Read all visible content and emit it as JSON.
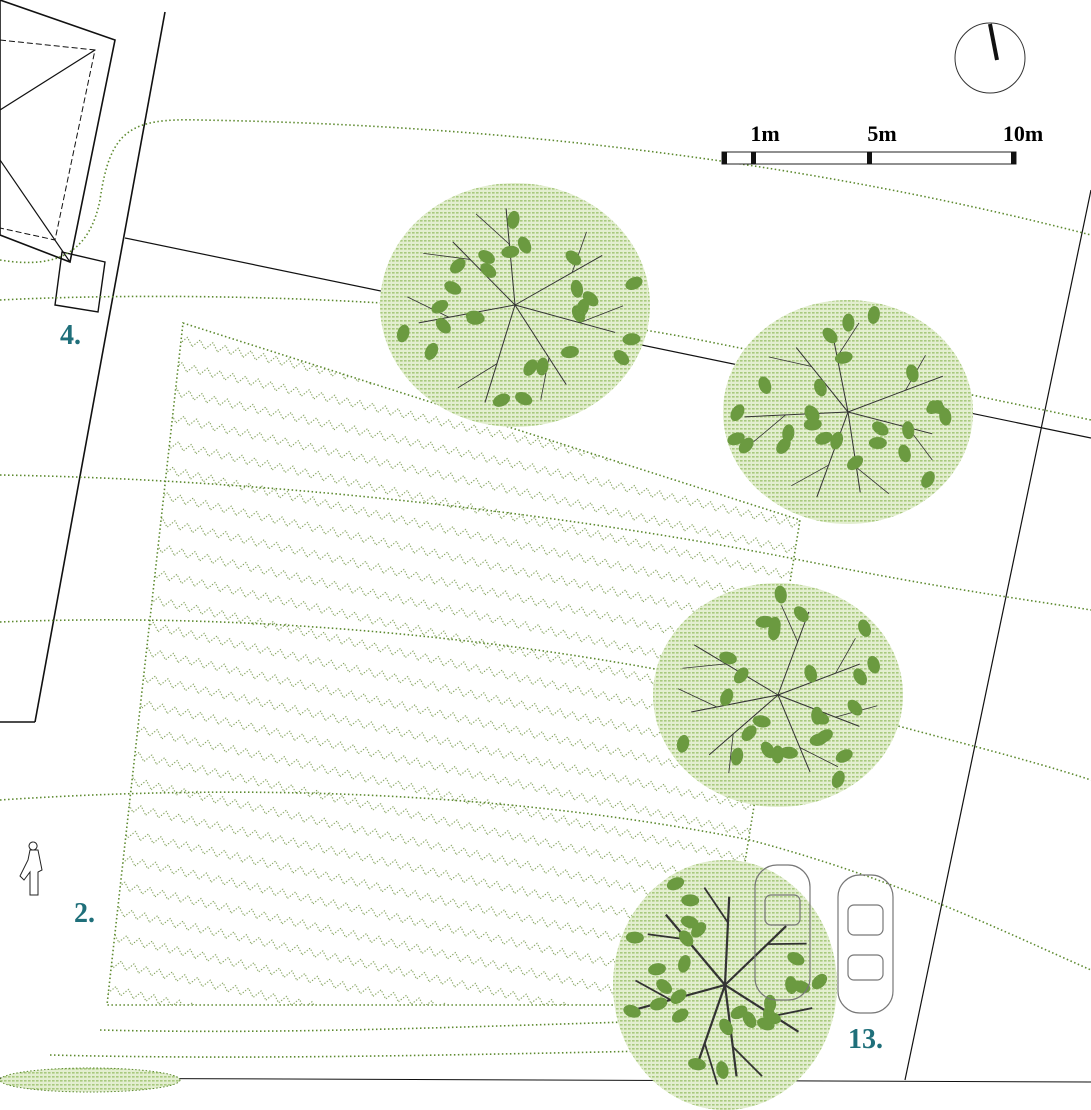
{
  "scale_bar": {
    "labels": [
      "1m",
      "5m",
      "10m"
    ]
  },
  "labels": [
    "4.",
    "2.",
    "13."
  ]
}
